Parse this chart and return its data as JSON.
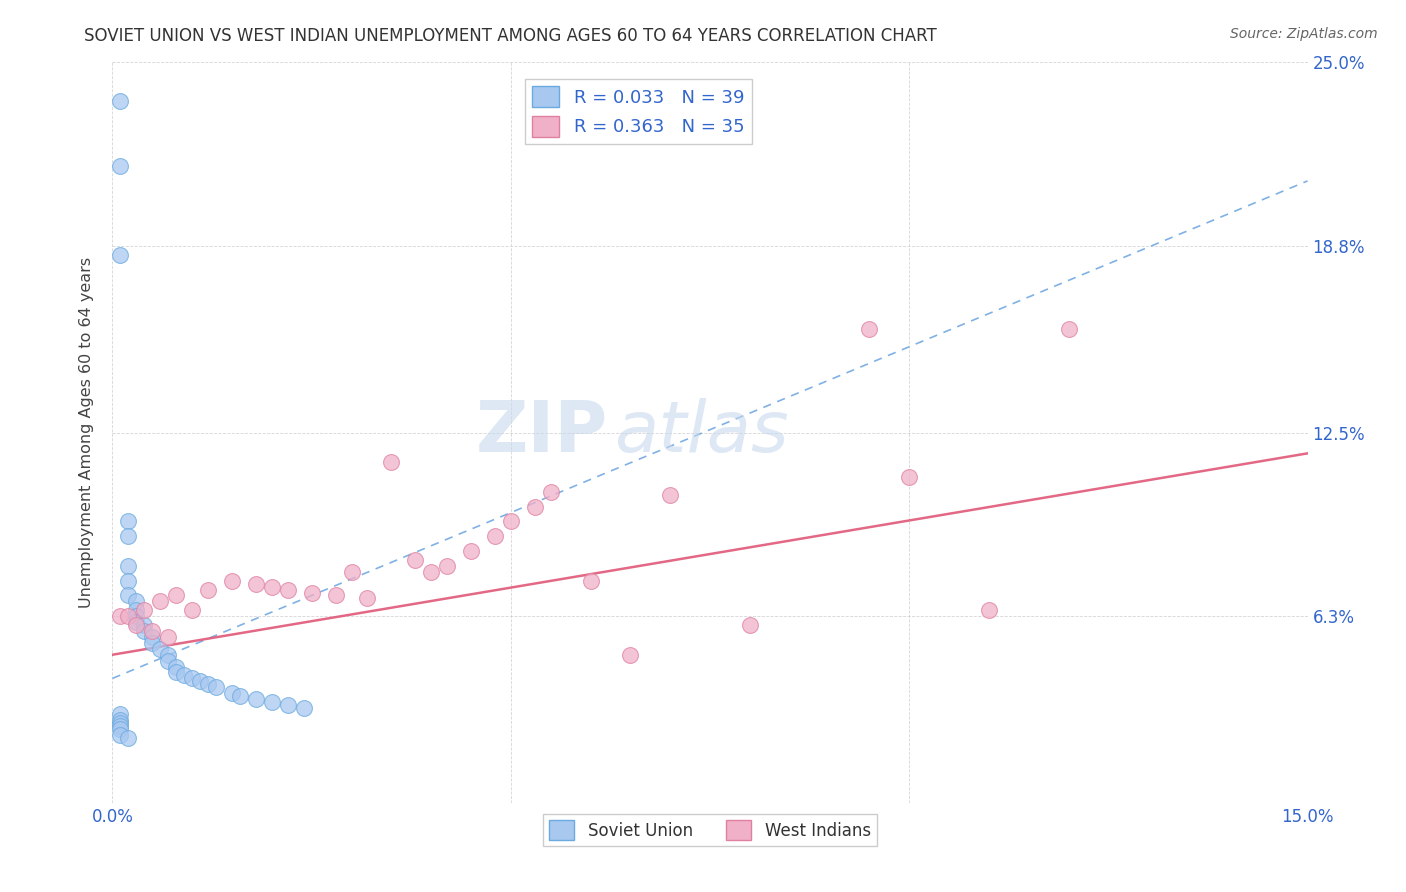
{
  "title": "SOVIET UNION VS WEST INDIAN UNEMPLOYMENT AMONG AGES 60 TO 64 YEARS CORRELATION CHART",
  "source": "Source: ZipAtlas.com",
  "ylabel": "Unemployment Among Ages 60 to 64 years",
  "xlim": [
    0.0,
    0.15
  ],
  "ylim": [
    0.0,
    0.25
  ],
  "ytick_vals": [
    0.0,
    0.063,
    0.125,
    0.188,
    0.25
  ],
  "ytick_labels": [
    "",
    "6.3%",
    "12.5%",
    "18.8%",
    "25.0%"
  ],
  "xtick_vals": [
    0.0,
    0.05,
    0.1,
    0.15
  ],
  "xtick_labels": [
    "0.0%",
    "",
    "",
    "15.0%"
  ],
  "soviet_R": 0.033,
  "soviet_N": 39,
  "westindian_R": 0.363,
  "westindian_N": 35,
  "soviet_scatter_color": "#a8c8f0",
  "soviet_edge_color": "#6aaae0",
  "soviet_line_color": "#4a90d9",
  "westindian_scatter_color": "#f0b0c8",
  "westindian_edge_color": "#e080a0",
  "westindian_line_color": "#e05878",
  "legend_label_soviet": "Soviet Union",
  "legend_label_westindian": "West Indians",
  "watermark_zip": "ZIP",
  "watermark_atlas": "atlas",
  "grid_color": "#cccccc",
  "tick_color": "#3366cc",
  "title_color": "#333333",
  "source_color": "#666666",
  "soviet_x": [
    0.001,
    0.001,
    0.001,
    0.002,
    0.002,
    0.002,
    0.002,
    0.002,
    0.003,
    0.003,
    0.003,
    0.003,
    0.004,
    0.004,
    0.005,
    0.005,
    0.006,
    0.007,
    0.007,
    0.008,
    0.008,
    0.009,
    0.01,
    0.011,
    0.012,
    0.013,
    0.015,
    0.016,
    0.018,
    0.02,
    0.022,
    0.024,
    0.001,
    0.001,
    0.001,
    0.001,
    0.001,
    0.001,
    0.002
  ],
  "soviet_y": [
    0.237,
    0.215,
    0.185,
    0.095,
    0.09,
    0.08,
    0.075,
    0.07,
    0.068,
    0.065,
    0.063,
    0.061,
    0.06,
    0.058,
    0.056,
    0.054,
    0.052,
    0.05,
    0.048,
    0.046,
    0.044,
    0.043,
    0.042,
    0.041,
    0.04,
    0.039,
    0.037,
    0.036,
    0.035,
    0.034,
    0.033,
    0.032,
    0.03,
    0.028,
    0.027,
    0.026,
    0.025,
    0.023,
    0.022
  ],
  "westindian_x": [
    0.001,
    0.002,
    0.003,
    0.004,
    0.005,
    0.006,
    0.007,
    0.008,
    0.01,
    0.012,
    0.015,
    0.018,
    0.02,
    0.022,
    0.025,
    0.028,
    0.03,
    0.032,
    0.035,
    0.038,
    0.04,
    0.042,
    0.045,
    0.048,
    0.05,
    0.053,
    0.055,
    0.06,
    0.065,
    0.07,
    0.08,
    0.095,
    0.1,
    0.11,
    0.12
  ],
  "westindian_y": [
    0.063,
    0.063,
    0.06,
    0.065,
    0.058,
    0.068,
    0.056,
    0.07,
    0.065,
    0.072,
    0.075,
    0.074,
    0.073,
    0.072,
    0.071,
    0.07,
    0.078,
    0.069,
    0.115,
    0.082,
    0.078,
    0.08,
    0.085,
    0.09,
    0.095,
    0.1,
    0.105,
    0.075,
    0.05,
    0.104,
    0.06,
    0.16,
    0.11,
    0.065,
    0.16
  ],
  "soviet_line_x": [
    0.0,
    0.15
  ],
  "soviet_line_y": [
    0.042,
    0.21
  ],
  "westindian_line_x": [
    0.0,
    0.15
  ],
  "westindian_line_y": [
    0.05,
    0.118
  ]
}
